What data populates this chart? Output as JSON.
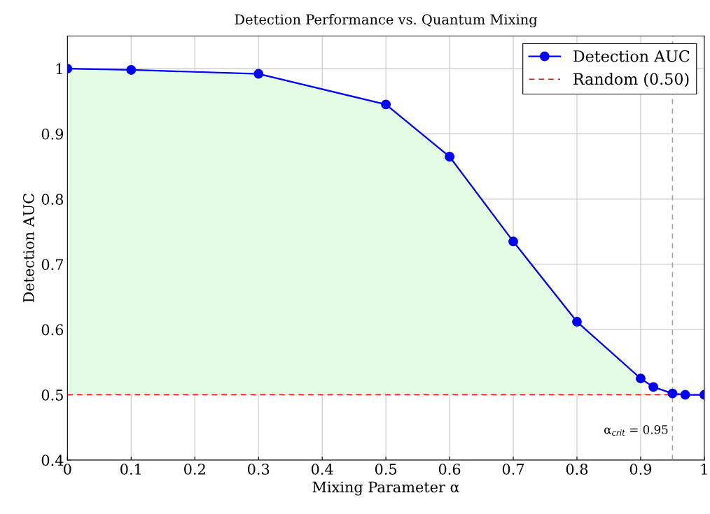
{
  "chart_data": {
    "type": "line",
    "title": "Detection Performance vs. Quantum Mixing",
    "xlabel": "Mixing Parameter α",
    "ylabel": "Detection AUC",
    "series": [
      {
        "type": "area",
        "color": "#e4fce4",
        "x": [
          0,
          0.1,
          0.3,
          0.5,
          0.6,
          0.7,
          0.8,
          0.9
        ],
        "values": [
          1.0,
          0.998,
          0.992,
          0.945,
          0.865,
          0.735,
          0.612,
          0.525
        ]
      },
      {
        "name": "Detection AUC",
        "marker": "circle",
        "color": "#0000ff",
        "x": [
          0,
          0.1,
          0.3,
          0.5,
          0.6,
          0.7,
          0.8,
          0.9,
          0.92,
          0.95,
          0.97,
          1.0
        ],
        "values": [
          1.0,
          0.998,
          0.992,
          0.945,
          0.865,
          0.735,
          0.612,
          0.525,
          0.512,
          0.502,
          0.5,
          0.5
        ]
      }
    ],
    "ref_lines": [
      {
        "axis": "y",
        "value": 0.5,
        "label": "Random (0.50)",
        "color": "#ff0000",
        "line_style": "dashed"
      },
      {
        "axis": "x",
        "value": 0.95,
        "color": "#a0a0a0",
        "line_style": "dashed"
      }
    ],
    "annotations": [
      {
        "text": "α$_{crit}$ = 0.95",
        "x": 0.95,
        "y": 0.445
      }
    ],
    "xlim": [
      0,
      1
    ],
    "xticks": [
      0,
      0.1,
      0.2,
      0.3,
      0.4,
      0.5,
      0.6,
      0.7,
      0.8,
      0.9,
      1
    ],
    "ylim": [
      0.4,
      1.05
    ],
    "yticks": [
      0.4,
      0.5,
      0.6,
      0.7,
      0.8,
      0.9,
      1
    ],
    "grid": true,
    "legend": "top right",
    "line_style": "solid"
  }
}
